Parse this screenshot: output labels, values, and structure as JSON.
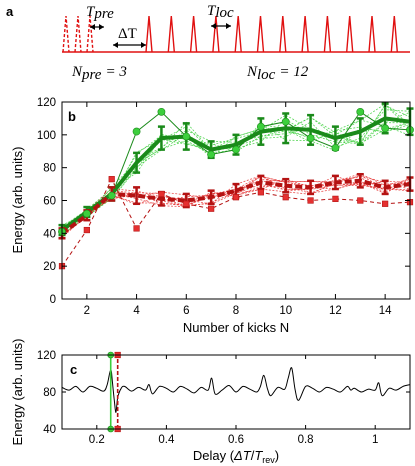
{
  "colors": {
    "pulse": "#e01010",
    "green_dark": "#1a8a1a",
    "green_light": "#3ccf3c",
    "red_dark": "#b41212",
    "red_light": "#e53030",
    "trace": "#000000"
  },
  "schematic": {
    "panel_label": "a",
    "t_pre": {
      "sym": "T",
      "sub": "pre"
    },
    "delta_t": "ΔT",
    "t_loc": {
      "sym": "T",
      "sub": "loc"
    },
    "n_pre": {
      "sym": "N",
      "sub": "pre",
      "value": "= 3"
    },
    "n_loc": {
      "sym": "N",
      "sub": "loc",
      "value": "= 12"
    },
    "pre_pulses": 3,
    "loc_pulses": 12
  },
  "chart_data": [
    {
      "panel": "b",
      "type": "line",
      "xlabel": "Number of kicks N",
      "ylabel": "Energy (arb. units)",
      "xlim": [
        1,
        15
      ],
      "ylim": [
        0,
        120
      ],
      "xticks": [
        2,
        4,
        6,
        8,
        10,
        12,
        14
      ],
      "yticks": [
        0,
        20,
        40,
        60,
        80,
        100,
        120
      ],
      "x": [
        1,
        2,
        3,
        4,
        5,
        6,
        7,
        8,
        9,
        10,
        11,
        12,
        13,
        14,
        15
      ],
      "series": [
        {
          "role": "green_mean",
          "values": [
            42,
            53,
            64,
            83,
            98,
            99,
            91,
            94,
            102,
            104,
            103,
            98,
            102,
            110,
            108
          ],
          "err": [
            3,
            3,
            4,
            6,
            7,
            8,
            5,
            6,
            8,
            9,
            9,
            7,
            8,
            9,
            8
          ]
        },
        {
          "role": "green_single",
          "values": [
            41,
            52,
            63,
            102,
            114,
            99,
            88,
            91,
            105,
            108,
            98,
            92,
            114,
            104,
            103
          ]
        },
        {
          "role": "red_mean",
          "values": [
            40,
            51,
            64,
            63,
            61,
            60,
            62,
            66,
            71,
            69,
            68,
            71,
            72,
            68,
            70
          ],
          "err": [
            3,
            3,
            4,
            5,
            4,
            4,
            4,
            4,
            4,
            4,
            4,
            4,
            4,
            4,
            4
          ]
        },
        {
          "role": "red_single",
          "values": [
            20,
            42,
            73,
            43,
            64,
            58,
            55,
            62,
            65,
            62,
            60,
            61,
            60,
            58,
            59
          ]
        }
      ],
      "grid": false
    },
    {
      "panel": "c",
      "type": "line",
      "xlabel": "Delay  (ΔT/T_rev)",
      "xlabel_parts": {
        "pre": "Delay  (",
        "num": "ΔT",
        "slash": "/",
        "den": "T",
        "den_sub": "rev",
        "post": ")"
      },
      "ylabel": "Energy (arb. units)",
      "xlim": [
        0.1,
        1.1
      ],
      "ylim": [
        40,
        120
      ],
      "xticks": [
        0.2,
        0.4,
        0.6,
        0.8,
        1
      ],
      "yticks": [
        40,
        80,
        120
      ],
      "markers": [
        {
          "role": "green_marker",
          "x": 0.24,
          "y_low": 40,
          "y_high": 120
        },
        {
          "role": "red_marker",
          "x": 0.26,
          "y_low": 40,
          "y_high": 120
        }
      ],
      "trace": {
        "x": [
          0.1,
          0.12,
          0.14,
          0.16,
          0.18,
          0.2,
          0.22,
          0.23,
          0.24,
          0.245,
          0.25,
          0.255,
          0.26,
          0.27,
          0.28,
          0.3,
          0.32,
          0.34,
          0.35,
          0.36,
          0.38,
          0.4,
          0.42,
          0.44,
          0.46,
          0.48,
          0.5,
          0.52,
          0.53,
          0.54,
          0.56,
          0.58,
          0.6,
          0.62,
          0.64,
          0.66,
          0.67,
          0.68,
          0.69,
          0.7,
          0.72,
          0.74,
          0.75,
          0.76,
          0.77,
          0.78,
          0.8,
          0.82,
          0.84,
          0.86,
          0.88,
          0.9,
          0.92,
          0.93,
          0.94,
          0.96,
          0.98,
          1.0,
          1.01,
          1.02,
          1.04,
          1.06,
          1.08,
          1.1
        ],
        "y": [
          85,
          82,
          86,
          80,
          86,
          84,
          81,
          88,
          104,
          90,
          72,
          58,
          74,
          84,
          86,
          81,
          85,
          82,
          88,
          78,
          86,
          84,
          80,
          86,
          83,
          79,
          85,
          82,
          95,
          78,
          82,
          87,
          80,
          86,
          83,
          80,
          86,
          98,
          84,
          76,
          85,
          83,
          95,
          106,
          82,
          71,
          86,
          84,
          80,
          85,
          83,
          80,
          86,
          82,
          84,
          80,
          83,
          82,
          90,
          76,
          84,
          82,
          86,
          88
        ]
      }
    }
  ]
}
